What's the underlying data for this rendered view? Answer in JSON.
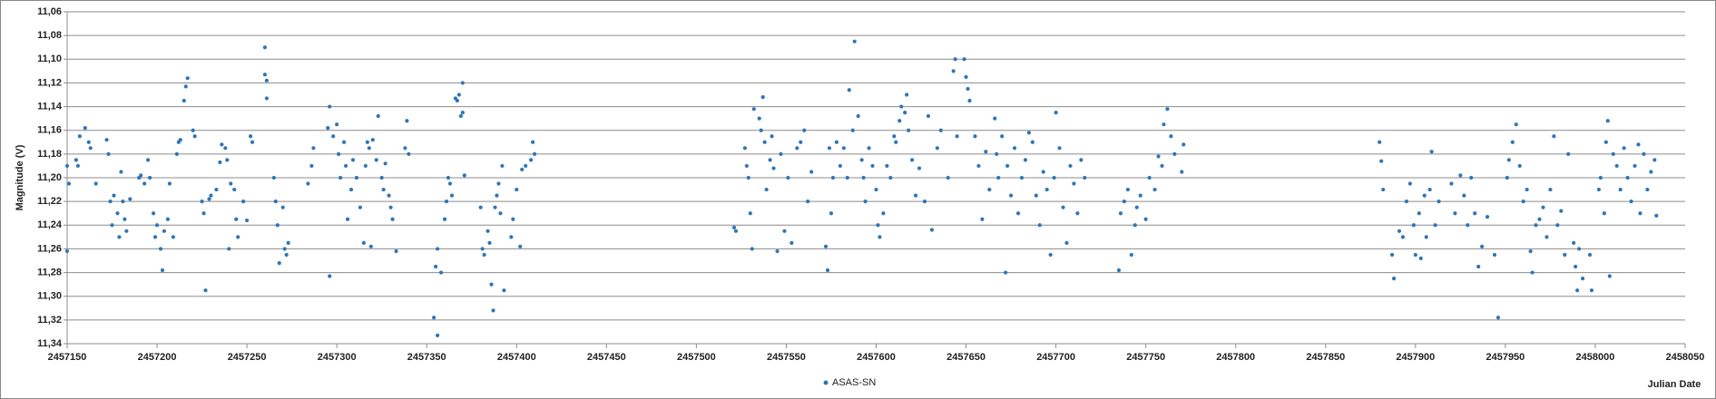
{
  "chart_data": {
    "type": "scatter",
    "y_label": "Magnitude (V)",
    "x_label": "Julian Date",
    "ylim": [
      11.06,
      11.34
    ],
    "y_inverted": true,
    "yticks": [
      {
        "value": 11.06,
        "label": "11,06"
      },
      {
        "value": 11.08,
        "label": "11,08"
      },
      {
        "value": 11.1,
        "label": "11,10"
      },
      {
        "value": 11.12,
        "label": "11,12"
      },
      {
        "value": 11.14,
        "label": "11,14"
      },
      {
        "value": 11.16,
        "label": "11,16"
      },
      {
        "value": 11.18,
        "label": "11,18"
      },
      {
        "value": 11.2,
        "label": "11,20"
      },
      {
        "value": 11.22,
        "label": "11,22"
      },
      {
        "value": 11.24,
        "label": "11,24"
      },
      {
        "value": 11.26,
        "label": "11,26"
      },
      {
        "value": 11.28,
        "label": "11,28"
      },
      {
        "value": 11.3,
        "label": "11,30"
      },
      {
        "value": 11.32,
        "label": "11,32"
      },
      {
        "value": 11.34,
        "label": "11,34"
      }
    ],
    "xlim": [
      2457150,
      2458050
    ],
    "xticks": [
      2457150,
      2457200,
      2457250,
      2457300,
      2457350,
      2457400,
      2457450,
      2457500,
      2457550,
      2457600,
      2457650,
      2457700,
      2457750,
      2457800,
      2457850,
      2457900,
      2457950,
      2458000,
      2458050
    ],
    "grid": true,
    "legend": "bottom",
    "series": [
      {
        "name": "ASAS-SN",
        "color": "#2e75b6",
        "x": [
          2457150,
          2457151,
          2457150,
          2457155,
          2457156,
          2457157,
          2457160,
          2457162,
          2457163,
          2457166,
          2457172,
          2457173,
          2457174,
          2457175,
          2457176,
          2457178,
          2457179,
          2457180,
          2457181,
          2457182,
          2457183,
          2457185,
          2457190,
          2457191,
          2457193,
          2457195,
          2457196,
          2457198,
          2457199,
          2457200,
          2457202,
          2457203,
          2457204,
          2457206,
          2457207,
          2457209,
          2457211,
          2457212,
          2457213,
          2457215,
          2457216,
          2457217,
          2457220,
          2457221,
          2457225,
          2457226,
          2457227,
          2457229,
          2457230,
          2457233,
          2457235,
          2457236,
          2457238,
          2457239,
          2457240,
          2457241,
          2457243,
          2457244,
          2457245,
          2457248,
          2457250,
          2457252,
          2457253,
          2457260,
          2457260,
          2457261,
          2457261,
          2457265,
          2457266,
          2457267,
          2457268,
          2457270,
          2457271,
          2457272,
          2457273,
          2457284,
          2457286,
          2457287,
          2457295,
          2457296,
          2457296,
          2457298,
          2457300,
          2457301,
          2457302,
          2457304,
          2457305,
          2457306,
          2457308,
          2457309,
          2457311,
          2457313,
          2457315,
          2457316,
          2457317,
          2457318,
          2457319,
          2457320,
          2457322,
          2457323,
          2457325,
          2457326,
          2457327,
          2457329,
          2457330,
          2457331,
          2457333,
          2457338,
          2457339,
          2457340,
          2457354,
          2457355,
          2457356,
          2457356,
          2457358,
          2457360,
          2457361,
          2457362,
          2457363,
          2457364,
          2457366,
          2457367,
          2457368,
          2457369,
          2457370,
          2457370,
          2457371,
          2457380,
          2457381,
          2457382,
          2457384,
          2457385,
          2457387,
          2457386,
          2457388,
          2457389,
          2457390,
          2457391,
          2457392,
          2457393,
          2457397,
          2457398,
          2457400,
          2457402,
          2457403,
          2457405,
          2457408,
          2457409,
          2457410,
          2457521,
          2457522,
          2457527,
          2457528,
          2457529,
          2457530,
          2457531,
          2457532,
          2457535,
          2457536,
          2457537,
          2457538,
          2457539,
          2457541,
          2457542,
          2457543,
          2457545,
          2457547,
          2457549,
          2457551,
          2457553,
          2457556,
          2457558,
          2457560,
          2457562,
          2457564,
          2457572,
          2457573,
          2457574,
          2457575,
          2457576,
          2457578,
          2457580,
          2457582,
          2457584,
          2457585,
          2457587,
          2457588,
          2457590,
          2457592,
          2457593,
          2457594,
          2457596,
          2457598,
          2457600,
          2457601,
          2457602,
          2457604,
          2457606,
          2457608,
          2457610,
          2457611,
          2457613,
          2457614,
          2457616,
          2457617,
          2457618,
          2457620,
          2457622,
          2457624,
          2457627,
          2457629,
          2457631,
          2457634,
          2457636,
          2457640,
          2457643,
          2457644,
          2457645,
          2457649,
          2457650,
          2457651,
          2457652,
          2457655,
          2457657,
          2457659,
          2457661,
          2457663,
          2457666,
          2457667,
          2457668,
          2457670,
          2457672,
          2457673,
          2457675,
          2457677,
          2457679,
          2457681,
          2457683,
          2457685,
          2457687,
          2457689,
          2457691,
          2457693,
          2457695,
          2457697,
          2457699,
          2457700,
          2457702,
          2457704,
          2457706,
          2457708,
          2457710,
          2457712,
          2457714,
          2457716,
          2457735,
          2457736,
          2457738,
          2457740,
          2457742,
          2457744,
          2457745,
          2457747,
          2457750,
          2457752,
          2457755,
          2457757,
          2457759,
          2457760,
          2457762,
          2457764,
          2457766,
          2457770,
          2457771,
          2457880,
          2457881,
          2457882,
          2457887,
          2457888,
          2457891,
          2457893,
          2457895,
          2457897,
          2457899,
          2457900,
          2457902,
          2457903,
          2457905,
          2457906,
          2457908,
          2457909,
          2457911,
          2457913,
          2457920,
          2457922,
          2457925,
          2457927,
          2457929,
          2457931,
          2457933,
          2457935,
          2457937,
          2457940,
          2457944,
          2457946,
          2457951,
          2457952,
          2457954,
          2457956,
          2457958,
          2457960,
          2457962,
          2457964,
          2457965,
          2457967,
          2457969,
          2457971,
          2457973,
          2457975,
          2457977,
          2457979,
          2457981,
          2457983,
          2457985,
          2457988,
          2457989,
          2457990,
          2457991,
          2457993,
          2457997,
          2457998,
          2458002,
          2458003,
          2458005,
          2458006,
          2458007,
          2458008,
          2458010,
          2458012,
          2458014,
          2458016,
          2458018,
          2458020,
          2458022,
          2458024,
          2458025,
          2458027,
          2458029,
          2458031,
          2458033,
          2458034
        ],
        "values": [
          11.19,
          11.205,
          11.262,
          11.185,
          11.19,
          11.165,
          11.158,
          11.17,
          11.175,
          11.205,
          11.168,
          11.18,
          11.22,
          11.24,
          11.215,
          11.23,
          11.25,
          11.195,
          11.22,
          11.235,
          11.245,
          11.218,
          11.2,
          11.198,
          11.205,
          11.185,
          11.2,
          11.23,
          11.25,
          11.24,
          11.26,
          11.278,
          11.245,
          11.235,
          11.205,
          11.25,
          11.18,
          11.17,
          11.168,
          11.135,
          11.123,
          11.116,
          11.16,
          11.165,
          11.22,
          11.23,
          11.295,
          11.218,
          11.215,
          11.21,
          11.187,
          11.172,
          11.175,
          11.185,
          11.26,
          11.205,
          11.21,
          11.235,
          11.25,
          11.22,
          11.236,
          11.165,
          11.17,
          11.09,
          11.113,
          11.118,
          11.133,
          11.2,
          11.22,
          11.24,
          11.272,
          11.225,
          11.26,
          11.265,
          11.255,
          11.205,
          11.19,
          11.175,
          11.158,
          11.14,
          11.283,
          11.165,
          11.155,
          11.18,
          11.2,
          11.17,
          11.19,
          11.235,
          11.21,
          11.185,
          11.2,
          11.225,
          11.255,
          11.19,
          11.17,
          11.175,
          11.258,
          11.168,
          11.185,
          11.148,
          11.2,
          11.21,
          11.188,
          11.215,
          11.225,
          11.235,
          11.262,
          11.175,
          11.152,
          11.18,
          11.318,
          11.275,
          11.333,
          11.26,
          11.28,
          11.235,
          11.22,
          11.2,
          11.205,
          11.215,
          11.133,
          11.135,
          11.13,
          11.148,
          11.145,
          11.12,
          11.198,
          11.225,
          11.26,
          11.265,
          11.245,
          11.255,
          11.312,
          11.29,
          11.225,
          11.215,
          11.205,
          11.23,
          11.19,
          11.295,
          11.25,
          11.235,
          11.21,
          11.258,
          11.193,
          11.19,
          11.185,
          11.17,
          11.18,
          11.242,
          11.245,
          11.175,
          11.19,
          11.2,
          11.23,
          11.26,
          11.142,
          11.15,
          11.16,
          11.132,
          11.17,
          11.21,
          11.185,
          11.165,
          11.192,
          11.262,
          11.18,
          11.245,
          11.2,
          11.255,
          11.175,
          11.17,
          11.16,
          11.22,
          11.195,
          11.258,
          11.278,
          11.175,
          11.23,
          11.2,
          11.17,
          11.19,
          11.175,
          11.2,
          11.126,
          11.16,
          11.085,
          11.148,
          11.185,
          11.2,
          11.22,
          11.175,
          11.19,
          11.21,
          11.24,
          11.25,
          11.23,
          11.19,
          11.2,
          11.165,
          11.17,
          11.152,
          11.14,
          11.145,
          11.13,
          11.16,
          11.185,
          11.215,
          11.192,
          11.22,
          11.148,
          11.244,
          11.175,
          11.16,
          11.2,
          11.11,
          11.1,
          11.165,
          11.1,
          11.115,
          11.125,
          11.135,
          11.165,
          11.19,
          11.235,
          11.178,
          11.21,
          11.15,
          11.18,
          11.2,
          11.165,
          11.28,
          11.19,
          11.215,
          11.175,
          11.23,
          11.2,
          11.185,
          11.162,
          11.17,
          11.215,
          11.24,
          11.195,
          11.21,
          11.265,
          11.2,
          11.145,
          11.175,
          11.225,
          11.255,
          11.19,
          11.205,
          11.23,
          11.185,
          11.2,
          11.278,
          11.23,
          11.22,
          11.21,
          11.265,
          11.24,
          11.225,
          11.215,
          11.235,
          11.2,
          11.21,
          11.182,
          11.19,
          11.155,
          11.142,
          11.165,
          11.18,
          11.195,
          11.172,
          11.17,
          11.186,
          11.21,
          11.265,
          11.285,
          11.245,
          11.25,
          11.22,
          11.205,
          11.24,
          11.265,
          11.23,
          11.268,
          11.215,
          11.25,
          11.21,
          11.178,
          11.24,
          11.22,
          11.205,
          11.23,
          11.198,
          11.215,
          11.24,
          11.2,
          11.23,
          11.275,
          11.258,
          11.233,
          11.265,
          11.318,
          11.2,
          11.185,
          11.17,
          11.155,
          11.19,
          11.22,
          11.21,
          11.262,
          11.28,
          11.24,
          11.235,
          11.225,
          11.25,
          11.21,
          11.165,
          11.24,
          11.228,
          11.265,
          11.18,
          11.255,
          11.275,
          11.295,
          11.26,
          11.285,
          11.265,
          11.295,
          11.21,
          11.2,
          11.23,
          11.17,
          11.152,
          11.283,
          11.18,
          11.19,
          11.21,
          11.175,
          11.2,
          11.22,
          11.19,
          11.172,
          11.23,
          11.18,
          11.21,
          11.195,
          11.185,
          11.232
        ]
      }
    ]
  }
}
